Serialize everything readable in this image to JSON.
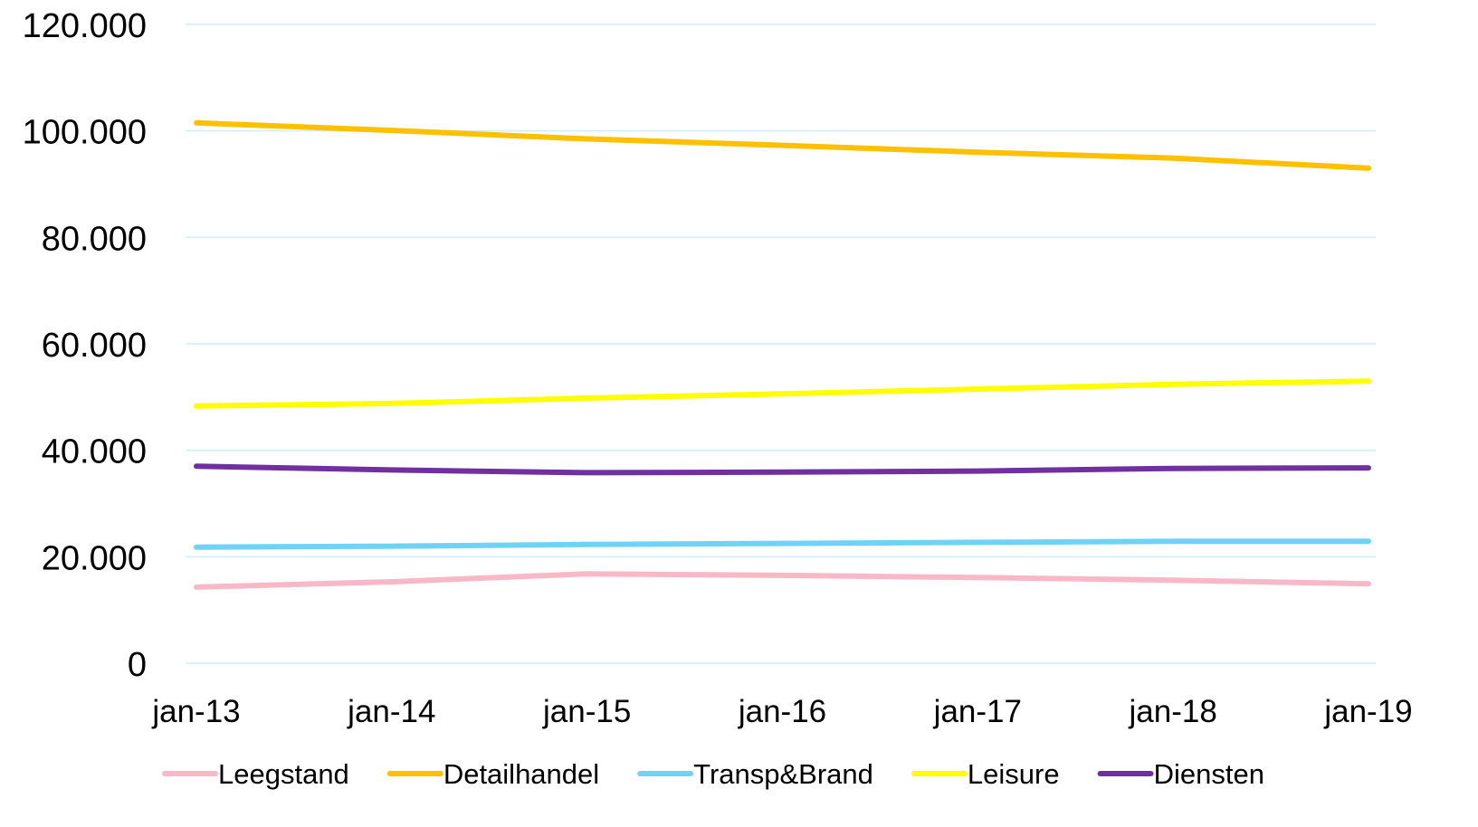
{
  "chart_data": {
    "type": "line",
    "title": "",
    "xlabel": "",
    "ylabel": "",
    "categories": [
      "jan-13",
      "jan-14",
      "jan-15",
      "jan-16",
      "jan-17",
      "jan-18",
      "jan-19"
    ],
    "ylim": [
      0,
      120000
    ],
    "yticks": [
      0,
      20000,
      40000,
      60000,
      80000,
      100000,
      120000
    ],
    "ytick_labels": [
      "0",
      "20.000",
      "40.000",
      "60.000",
      "80.000",
      "100.000",
      "120.000"
    ],
    "grid": true,
    "grid_color": "#cfeef8",
    "legend_position": "bottom",
    "series": [
      {
        "name": "Leegstand",
        "color": "#f9b8c8",
        "values": [
          14300,
          15300,
          16800,
          16500,
          16100,
          15600,
          14900
        ]
      },
      {
        "name": "Detailhandel",
        "color": "#ffc000",
        "values": [
          101500,
          100100,
          98500,
          97300,
          96000,
          94900,
          93000
        ]
      },
      {
        "name": "Transp&Brand",
        "color": "#6fd3f7",
        "values": [
          21800,
          22000,
          22300,
          22500,
          22700,
          22900,
          22900
        ]
      },
      {
        "name": "Leisure",
        "color": "#ffff00",
        "values": [
          48300,
          48800,
          49800,
          50600,
          51500,
          52400,
          53000
        ]
      },
      {
        "name": "Diensten",
        "color": "#7030a0",
        "values": [
          37000,
          36300,
          35800,
          35900,
          36100,
          36600,
          36700
        ]
      }
    ]
  }
}
